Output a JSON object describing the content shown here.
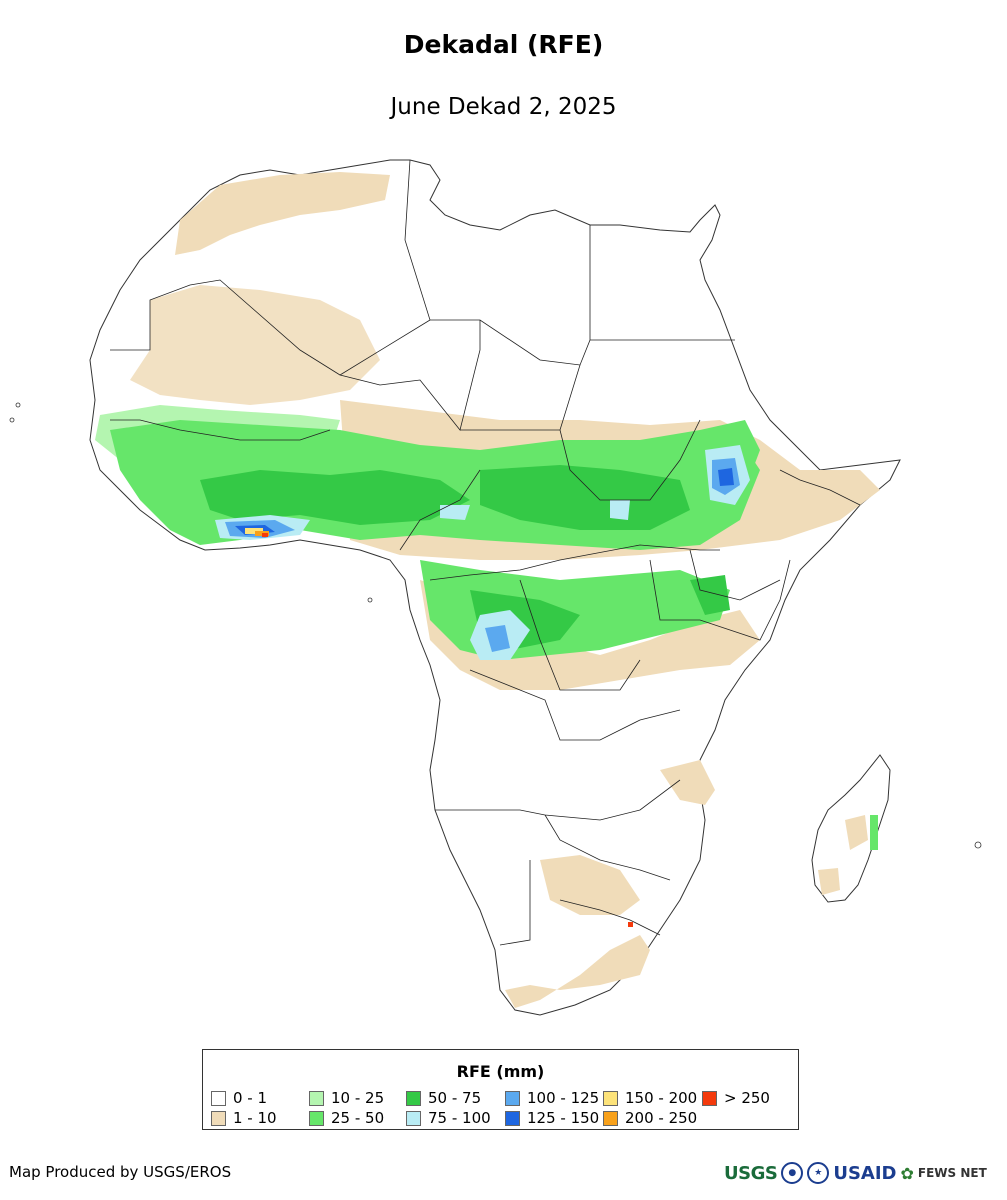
{
  "header": {
    "title": "Dekadal (RFE)",
    "subtitle": "June Dekad 2, 2025"
  },
  "legend": {
    "title": "RFE (mm)",
    "items": [
      {
        "label": "0 - 1",
        "color": "#ffffff"
      },
      {
        "label": "1 - 10",
        "color": "#f0dcb9"
      },
      {
        "label": "10 - 25",
        "color": "#b4f5b0"
      },
      {
        "label": "25 - 50",
        "color": "#66e66a"
      },
      {
        "label": "50 - 75",
        "color": "#34c946"
      },
      {
        "label": "75 - 100",
        "color": "#b9ecf4"
      },
      {
        "label": "100 - 125",
        "color": "#5ba9ef"
      },
      {
        "label": "125 - 150",
        "color": "#1e66e0"
      },
      {
        "label": "150 - 200",
        "color": "#fde37a"
      },
      {
        "label": "200 - 250",
        "color": "#f8a11b"
      },
      {
        "label": "> 250",
        "color": "#f43a0c"
      }
    ]
  },
  "footer": {
    "credit": "Map Produced by USGS/EROS",
    "logos": {
      "usgs": "USGS",
      "usaid": "USAID",
      "fews": "FEWS NET"
    }
  }
}
